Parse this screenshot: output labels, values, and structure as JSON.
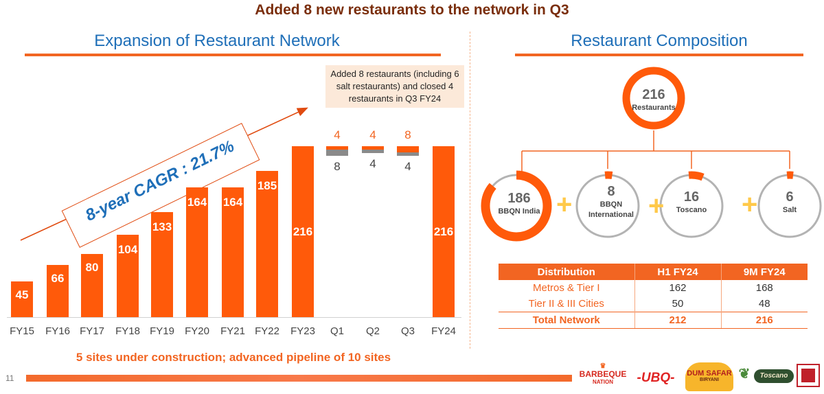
{
  "headline": "Added 8 new restaurants to the network in Q3",
  "left_title": "Expansion of Restaurant Network",
  "right_title": "Restaurant Composition",
  "note": "Added 8 restaurants (including 6 salt restaurants) and closed 4 restaurants  in Q3 FY24",
  "cagr_label": "8-year CAGR : 21.7%",
  "bottom_note": "5 sites under construction; advanced pipeline of 10 sites",
  "page_number": "11",
  "chart_data": [
    {
      "type": "bar",
      "title": "Expansion of Restaurant Network",
      "categories": [
        "FY15",
        "FY16",
        "FY17",
        "FY18",
        "FY19",
        "FY20",
        "FY21",
        "FY22",
        "FY23",
        "Q1",
        "Q2",
        "Q3",
        "FY24"
      ],
      "annual": {
        "categories": [
          "FY15",
          "FY16",
          "FY17",
          "FY18",
          "FY19",
          "FY20",
          "FY21",
          "FY22",
          "FY23"
        ],
        "values": [
          45,
          66,
          80,
          104,
          133,
          164,
          164,
          185,
          216
        ],
        "labels": [
          "45",
          "66",
          "80",
          "104",
          "133",
          "164",
          "164",
          "185",
          "216"
        ]
      },
      "quarterly": {
        "categories": [
          "Q1",
          "Q2",
          "Q3"
        ],
        "added": [
          4,
          4,
          8
        ],
        "closed": [
          8,
          4,
          4
        ],
        "added_labels": [
          "4",
          "4",
          "8"
        ],
        "closed_labels": [
          "8",
          "4",
          "4"
        ]
      },
      "final": {
        "category": "FY24",
        "value": 216,
        "label": "216"
      },
      "ylim": [
        0,
        216
      ]
    },
    {
      "type": "pie",
      "title": "Restaurant Composition",
      "total": {
        "value": "216",
        "label": "Restaurants"
      },
      "segments": [
        {
          "value": "186",
          "label": "BBQN India",
          "share": 0.861
        },
        {
          "value": "8",
          "label": "BBQN International",
          "label_lines": [
            "BBQN",
            "International"
          ],
          "share": 0.037
        },
        {
          "value": "16",
          "label": "Toscano",
          "share": 0.074
        },
        {
          "value": "6",
          "label": "Salt",
          "share": 0.028
        }
      ],
      "plus": "+"
    }
  ],
  "table": {
    "headers": [
      "Distribution",
      "H1 FY24",
      "9M FY24"
    ],
    "rows": [
      [
        "Metros & Tier I",
        "162",
        "168"
      ],
      [
        "Tier II & III Cities",
        "50",
        "48"
      ]
    ],
    "total": [
      "Total Network",
      "212",
      "216"
    ]
  },
  "logos": {
    "barbeque": [
      "BARBEQUE",
      "NATION"
    ],
    "ubq": "-UBQ-",
    "dum_safar": [
      "DUM SAFAR",
      "BIRYANI"
    ],
    "toscano": "Toscano"
  },
  "colors": {
    "accent": "#f26522",
    "bar": "#ff5a0a",
    "closed": "#8a8a8a",
    "title": "#1f6fb8",
    "headline": "#7a2e0c"
  }
}
